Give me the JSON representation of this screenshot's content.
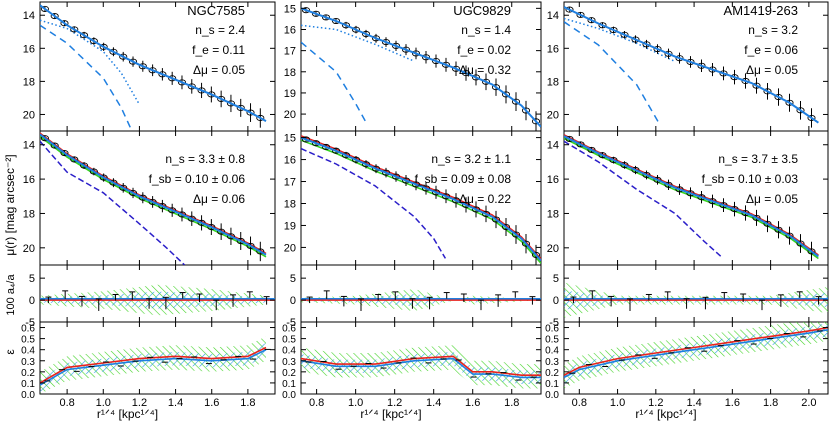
{
  "figure": {
    "ylabel_main": "μ(r)  [mag arcsec⁻²]",
    "ylabel_a4": "100 a₄/a",
    "ylabel_eps": "ε",
    "xlabel": "r¹ᐟ⁴ [kpc¹ᐟ⁴]"
  },
  "columns": [
    {
      "galaxy": "NGC7585",
      "xlim": [
        0.65,
        1.95
      ],
      "xticks": [
        0.8,
        1.0,
        1.2,
        1.4,
        1.6,
        1.8
      ],
      "mu_ylim": [
        21.0,
        13.2
      ],
      "mu_yticks": [
        14,
        16,
        18,
        20
      ],
      "top_stats": [
        "n_s = 2.4",
        "f_e = 0.11",
        "Δμ = 0.05"
      ],
      "mid_stats": [
        "n_s = 3.3 ± 0.8",
        "f_sb = 0.10 ± 0.06",
        "Δμ = 0.06"
      ],
      "profile": {
        "x": [
          0.65,
          0.8,
          1.0,
          1.2,
          1.4,
          1.6,
          1.8,
          1.9
        ],
        "y": [
          13.4,
          14.6,
          15.9,
          17.0,
          17.9,
          18.8,
          19.8,
          20.4
        ]
      },
      "disk_dotted": {
        "x": [
          0.65,
          0.8,
          1.0,
          1.1,
          1.2
        ],
        "y": [
          14.3,
          14.8,
          16.2,
          17.5,
          19.4
        ]
      },
      "bulge_dashed": {
        "x": [
          0.65,
          0.8,
          1.0,
          1.1,
          1.15
        ],
        "y": [
          14.6,
          15.7,
          17.8,
          19.6,
          20.8
        ]
      },
      "mid_dashed": {
        "x": [
          0.65,
          0.8,
          1.0,
          1.2,
          1.35,
          1.45
        ],
        "y": [
          13.8,
          15.6,
          16.8,
          18.6,
          20.0,
          21.0
        ]
      },
      "a4_band": {
        "x": [
          0.65,
          1.0,
          1.3,
          1.6,
          1.9
        ],
        "y": [
          1.0,
          2.0,
          3.5,
          2.5,
          1.0
        ]
      },
      "eps": {
        "x": [
          0.65,
          0.8,
          1.0,
          1.2,
          1.4,
          1.6,
          1.8,
          1.9
        ],
        "y": [
          0.08,
          0.22,
          0.26,
          0.3,
          0.32,
          0.3,
          0.32,
          0.4
        ]
      }
    },
    {
      "galaxy": "UGC9829",
      "xlim": [
        0.72,
        1.95
      ],
      "xticks": [
        0.8,
        1.0,
        1.2,
        1.4,
        1.6,
        1.8
      ],
      "mu_ylim": [
        20.8,
        14.7
      ],
      "mu_yticks": [
        15,
        16,
        17,
        18,
        19,
        20
      ],
      "top_stats": [
        "n_s = 1.4",
        "f_e = 0.02",
        "Δμ = 0.32"
      ],
      "mid_stats": [
        "n_s = 3.2 ± 1.1",
        "f_sb = 0.09 ± 0.08",
        "Δμ = 0.22"
      ],
      "profile": {
        "x": [
          0.72,
          0.9,
          1.1,
          1.3,
          1.5,
          1.7,
          1.85,
          1.95
        ],
        "y": [
          15.0,
          15.6,
          16.4,
          17.1,
          17.8,
          18.6,
          19.6,
          20.6
        ]
      },
      "disk_dotted": {
        "x": [
          0.72,
          0.9,
          1.1,
          1.3
        ],
        "y": [
          15.8,
          16.0,
          16.7,
          17.5
        ]
      },
      "bulge_dashed": {
        "x": [
          0.72,
          0.9,
          1.0,
          1.06
        ],
        "y": [
          16.6,
          18.0,
          19.5,
          20.5
        ]
      },
      "mid_dashed": {
        "x": [
          0.72,
          0.9,
          1.1,
          1.3,
          1.4,
          1.46
        ],
        "y": [
          15.5,
          16.2,
          17.2,
          18.6,
          19.6,
          20.5
        ]
      },
      "a4_band": {
        "x": [
          0.72,
          1.0,
          1.3,
          1.6,
          1.95
        ],
        "y": [
          0.5,
          1.0,
          2.5,
          -1.0,
          0.0
        ]
      },
      "eps": {
        "x": [
          0.72,
          0.9,
          1.1,
          1.3,
          1.5,
          1.6,
          1.7,
          1.85,
          1.95
        ],
        "y": [
          0.3,
          0.25,
          0.25,
          0.3,
          0.32,
          0.18,
          0.18,
          0.15,
          0.15
        ]
      }
    },
    {
      "galaxy": "AM1419-263",
      "xlim": [
        0.72,
        2.1
      ],
      "xticks": [
        0.8,
        1.0,
        1.2,
        1.4,
        1.6,
        1.8,
        2.0
      ],
      "mu_ylim": [
        21.0,
        13.2
      ],
      "mu_yticks": [
        14,
        16,
        18,
        20
      ],
      "top_stats": [
        "n_s = 3.2",
        "f_e = 0.06",
        "Δμ = 0.05"
      ],
      "mid_stats": [
        "n_s = 3.7 ± 3.5",
        "f_sb = 0.10 ± 0.03",
        "Δμ = 0.05"
      ],
      "profile": {
        "x": [
          0.72,
          0.9,
          1.1,
          1.3,
          1.5,
          1.7,
          1.9,
          2.05
        ],
        "y": [
          13.5,
          14.5,
          15.5,
          16.5,
          17.3,
          18.1,
          19.3,
          20.5
        ]
      },
      "disk_dotted": {
        "x": [
          0.72,
          0.9,
          1.1,
          1.3
        ],
        "y": [
          14.2,
          14.8,
          15.7,
          16.8
        ]
      },
      "bulge_dashed": {
        "x": [
          0.72,
          0.9,
          1.1,
          1.22
        ],
        "y": [
          14.4,
          15.8,
          18.2,
          20.6
        ]
      },
      "mid_dashed": {
        "x": [
          0.72,
          0.9,
          1.1,
          1.3,
          1.45,
          1.55
        ],
        "y": [
          13.8,
          15.0,
          16.6,
          18.0,
          19.6,
          20.6
        ]
      },
      "a4_band": {
        "x": [
          0.72,
          1.0,
          1.4,
          1.8,
          2.1
        ],
        "y": [
          4.0,
          1.0,
          1.0,
          1.0,
          3.0
        ]
      },
      "eps": {
        "x": [
          0.72,
          0.8,
          1.0,
          1.2,
          1.4,
          1.6,
          1.8,
          2.0,
          2.1
        ],
        "y": [
          0.15,
          0.22,
          0.3,
          0.35,
          0.4,
          0.45,
          0.5,
          0.55,
          0.58
        ]
      }
    }
  ],
  "chart_data": {
    "type": "line",
    "panels": [
      {
        "galaxy": "NGC7585",
        "xlabel": "r¹ᐟ⁴ [kpc¹ᐟ⁴]",
        "ylabel": "μ(r)  [mag arcsec⁻²]",
        "n_s_top": 2.4,
        "f_e": 0.11,
        "delta_mu_top": 0.05,
        "n_s_mid": "3.3 ± 0.8",
        "f_sb": "0.10 ± 0.06",
        "delta_mu_mid": 0.06
      },
      {
        "galaxy": "UGC9829",
        "xlabel": "r¹ᐟ⁴ [kpc¹ᐟ⁴]",
        "n_s_top": 1.4,
        "f_e": 0.02,
        "delta_mu_top": 0.32,
        "n_s_mid": "3.2 ± 1.1",
        "f_sb": "0.09 ± 0.08",
        "delta_mu_mid": 0.22
      },
      {
        "galaxy": "AM1419-263",
        "xlabel": "r¹ᐟ⁴ [kpc¹ᐟ⁴]",
        "n_s_top": 3.2,
        "f_e": 0.06,
        "delta_mu_top": 0.05,
        "n_s_mid": "3.7 ± 3.5",
        "f_sb": "0.10 ± 0.03",
        "delta_mu_mid": 0.05
      }
    ],
    "a4_ylim": [
      -5,
      8
    ],
    "a4_yticks": [
      -5,
      0,
      5
    ],
    "eps_ylim": [
      0.0,
      0.65
    ],
    "eps_yticks": [
      0.0,
      0.1,
      0.2,
      0.3,
      0.4,
      0.5,
      0.6
    ],
    "colors": {
      "fit": "#1f7fe0",
      "data": "#000000",
      "red": "#e8221e",
      "green": "#33d11f",
      "blue_dashed": "#2b1fc9",
      "hatch_blue": "#2d9be6",
      "hatch_green": "#45d42a"
    }
  }
}
